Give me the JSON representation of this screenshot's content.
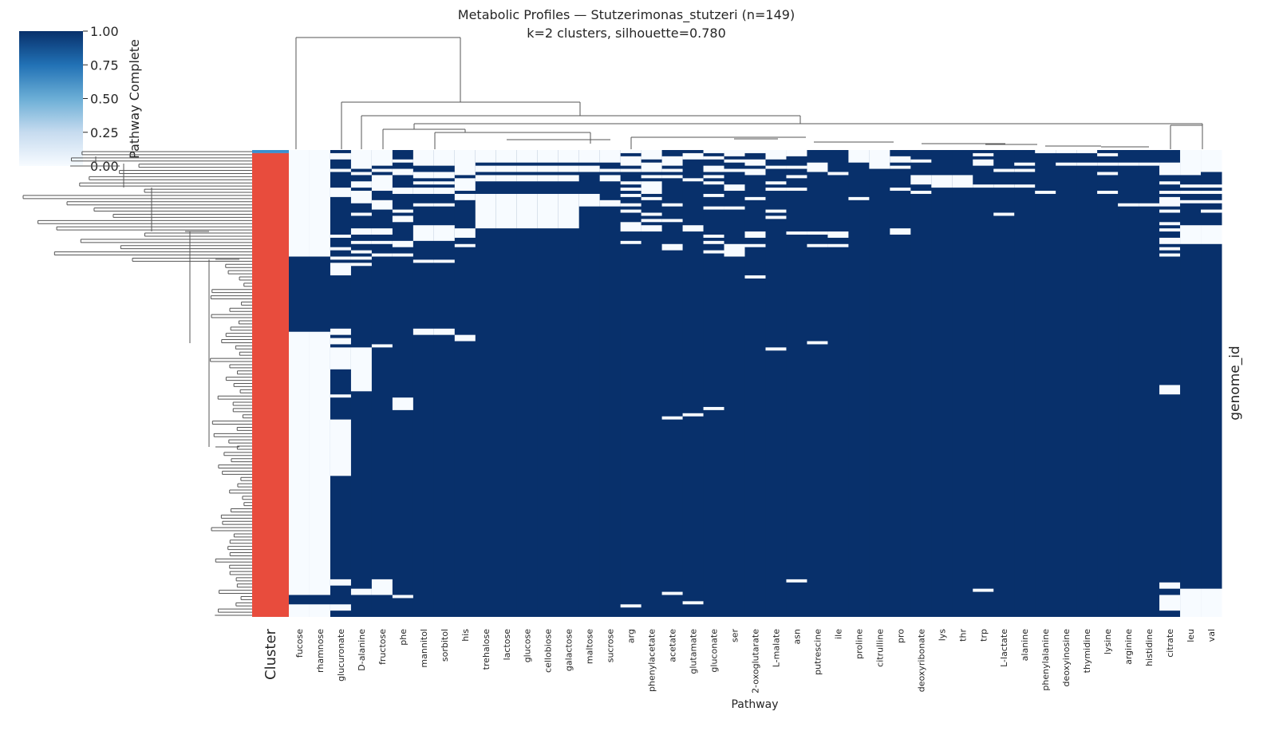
{
  "chart_data": {
    "type": "heatmap",
    "title": "Metabolic Profiles — Stutzerimonas_stutzeri (n=149)",
    "subtitle": "k=2 clusters, silhouette=0.780",
    "xlabel": "Pathway",
    "ylabel": "genome_id",
    "row_count": 149,
    "cluster_label": "Cluster",
    "colors": {
      "high": "#08306b",
      "low": "#f7fbff",
      "cluster_1": "#e84c3d",
      "cluster_2": "#3a8fd0"
    },
    "clusters": [
      {
        "id": 2,
        "rows": [
          0,
          0
        ],
        "color": "#3a8fd0"
      },
      {
        "id": 1,
        "rows": [
          1,
          148
        ],
        "color": "#e84c3d"
      }
    ],
    "colorbar": {
      "label": "Pathway Complete",
      "range": [
        0,
        1
      ],
      "ticks": [
        "0.00",
        "0.25",
        "0.50",
        "0.75",
        "1.00"
      ],
      "tick_values": [
        0,
        0.25,
        0.5,
        0.75,
        1.0
      ],
      "colormap": "Blues"
    },
    "default_value": 1,
    "columns": [
      {
        "name": "fucose",
        "zero_rows": [
          [
            0,
            33
          ],
          [
            58,
            141
          ],
          [
            145,
            148
          ]
        ]
      },
      {
        "name": "rhamnose",
        "zero_rows": [
          [
            0,
            33
          ],
          [
            58,
            141
          ],
          [
            145,
            148
          ]
        ]
      },
      {
        "name": "glucuronate",
        "zero_rows": [
          [
            1,
            2
          ],
          [
            6,
            6
          ],
          [
            12,
            14
          ],
          [
            27,
            27
          ],
          [
            31,
            31
          ],
          [
            34,
            34
          ],
          [
            36,
            39
          ],
          [
            57,
            58
          ],
          [
            60,
            61
          ],
          [
            63,
            69
          ],
          [
            78,
            78
          ],
          [
            86,
            103
          ],
          [
            137,
            138
          ],
          [
            145,
            146
          ]
        ]
      },
      {
        "name": "D-alanine",
        "zero_rows": [
          [
            0,
            5
          ],
          [
            7,
            7
          ],
          [
            10,
            11
          ],
          [
            13,
            16
          ],
          [
            20,
            20
          ],
          [
            25,
            26
          ],
          [
            29,
            29
          ],
          [
            32,
            32
          ],
          [
            34,
            34
          ],
          [
            36,
            36
          ],
          [
            63,
            76
          ],
          [
            140,
            141
          ]
        ]
      },
      {
        "name": "fructose",
        "zero_rows": [
          [
            0,
            4
          ],
          [
            6,
            6
          ],
          [
            8,
            12
          ],
          [
            16,
            18
          ],
          [
            25,
            26
          ],
          [
            29,
            29
          ],
          [
            33,
            33
          ],
          [
            62,
            62
          ],
          [
            137,
            141
          ]
        ]
      },
      {
        "name": "phe",
        "zero_rows": [
          [
            3,
            3
          ],
          [
            6,
            7
          ],
          [
            12,
            13
          ],
          [
            19,
            19
          ],
          [
            21,
            22
          ],
          [
            29,
            30
          ],
          [
            33,
            33
          ],
          [
            79,
            82
          ],
          [
            142,
            142
          ]
        ]
      },
      {
        "name": "mannitol",
        "zero_rows": [
          [
            0,
            4
          ],
          [
            7,
            8
          ],
          [
            10,
            10
          ],
          [
            12,
            13
          ],
          [
            17,
            17
          ],
          [
            24,
            28
          ],
          [
            35,
            35
          ],
          [
            57,
            58
          ]
        ]
      },
      {
        "name": "sorbitol",
        "zero_rows": [
          [
            0,
            4
          ],
          [
            7,
            8
          ],
          [
            10,
            10
          ],
          [
            12,
            13
          ],
          [
            17,
            17
          ],
          [
            24,
            28
          ],
          [
            35,
            35
          ],
          [
            57,
            58
          ]
        ]
      },
      {
        "name": "his",
        "zero_rows": [
          [
            0,
            7
          ],
          [
            9,
            12
          ],
          [
            14,
            15
          ],
          [
            25,
            27
          ],
          [
            30,
            30
          ],
          [
            59,
            60
          ]
        ]
      },
      {
        "name": "trehalose",
        "zero_rows": [
          [
            0,
            3
          ],
          [
            5,
            6
          ],
          [
            8,
            9
          ],
          [
            14,
            24
          ]
        ]
      },
      {
        "name": "lactose",
        "zero_rows": [
          [
            0,
            3
          ],
          [
            5,
            6
          ],
          [
            8,
            9
          ],
          [
            14,
            24
          ]
        ]
      },
      {
        "name": "glucose",
        "zero_rows": [
          [
            0,
            3
          ],
          [
            5,
            6
          ],
          [
            8,
            9
          ],
          [
            14,
            24
          ]
        ]
      },
      {
        "name": "cellobiose",
        "zero_rows": [
          [
            0,
            3
          ],
          [
            5,
            6
          ],
          [
            8,
            9
          ],
          [
            14,
            24
          ]
        ]
      },
      {
        "name": "galactose",
        "zero_rows": [
          [
            0,
            3
          ],
          [
            5,
            6
          ],
          [
            8,
            9
          ],
          [
            14,
            24
          ]
        ]
      },
      {
        "name": "maltose",
        "zero_rows": [
          [
            0,
            3
          ],
          [
            5,
            6
          ],
          [
            14,
            17
          ]
        ]
      },
      {
        "name": "sucrose",
        "zero_rows": [
          [
            0,
            3
          ],
          [
            6,
            6
          ],
          [
            8,
            9
          ],
          [
            16,
            17
          ]
        ]
      },
      {
        "name": "arg",
        "zero_rows": [
          [
            0,
            0
          ],
          [
            2,
            4
          ],
          [
            6,
            6
          ],
          [
            10,
            10
          ],
          [
            12,
            12
          ],
          [
            14,
            14
          ],
          [
            17,
            17
          ],
          [
            19,
            19
          ],
          [
            23,
            25
          ],
          [
            29,
            29
          ],
          [
            145,
            145
          ]
        ]
      },
      {
        "name": "phenylacetate",
        "zero_rows": [
          [
            0,
            2
          ],
          [
            4,
            6
          ],
          [
            8,
            8
          ],
          [
            10,
            13
          ],
          [
            15,
            15
          ],
          [
            20,
            20
          ],
          [
            22,
            22
          ],
          [
            24,
            25
          ]
        ]
      },
      {
        "name": "acetate",
        "zero_rows": [
          [
            2,
            4
          ],
          [
            6,
            6
          ],
          [
            8,
            8
          ],
          [
            17,
            17
          ],
          [
            22,
            22
          ],
          [
            30,
            31
          ],
          [
            85,
            85
          ],
          [
            141,
            141
          ]
        ]
      },
      {
        "name": "glutamate",
        "zero_rows": [
          [
            1,
            2
          ],
          [
            9,
            9
          ],
          [
            24,
            25
          ],
          [
            84,
            84
          ],
          [
            144,
            144
          ]
        ]
      },
      {
        "name": "gluconate",
        "zero_rows": [
          [
            0,
            0
          ],
          [
            2,
            2
          ],
          [
            5,
            6
          ],
          [
            8,
            8
          ],
          [
            10,
            10
          ],
          [
            14,
            14
          ],
          [
            18,
            18
          ],
          [
            27,
            27
          ],
          [
            29,
            29
          ],
          [
            32,
            32
          ],
          [
            82,
            82
          ]
        ]
      },
      {
        "name": "ser",
        "zero_rows": [
          [
            0,
            1
          ],
          [
            3,
            3
          ],
          [
            6,
            6
          ],
          [
            11,
            12
          ],
          [
            18,
            18
          ],
          [
            30,
            33
          ]
        ]
      },
      {
        "name": "2-oxoglutarate",
        "zero_rows": [
          [
            0,
            0
          ],
          [
            3,
            4
          ],
          [
            6,
            7
          ],
          [
            15,
            15
          ],
          [
            26,
            27
          ],
          [
            30,
            30
          ],
          [
            40,
            40
          ]
        ]
      },
      {
        "name": "L-malate",
        "zero_rows": [
          [
            0,
            2
          ],
          [
            5,
            5
          ],
          [
            10,
            10
          ],
          [
            12,
            12
          ],
          [
            19,
            19
          ],
          [
            21,
            21
          ],
          [
            63,
            63
          ]
        ]
      },
      {
        "name": "asn",
        "zero_rows": [
          [
            0,
            1
          ],
          [
            5,
            5
          ],
          [
            8,
            8
          ],
          [
            12,
            12
          ],
          [
            26,
            26
          ],
          [
            137,
            137
          ]
        ]
      },
      {
        "name": "putrescine",
        "zero_rows": [
          [
            4,
            6
          ],
          [
            26,
            26
          ],
          [
            30,
            30
          ],
          [
            61,
            61
          ]
        ]
      },
      {
        "name": "ile",
        "zero_rows": [
          [
            7,
            7
          ],
          [
            26,
            27
          ],
          [
            30,
            30
          ]
        ]
      },
      {
        "name": "proline",
        "zero_rows": [
          [
            0,
            3
          ],
          [
            15,
            15
          ]
        ]
      },
      {
        "name": "citrulline",
        "zero_rows": [
          [
            0,
            5
          ]
        ]
      },
      {
        "name": "pro",
        "zero_rows": [
          [
            2,
            3
          ],
          [
            5,
            5
          ],
          [
            12,
            12
          ],
          [
            25,
            26
          ]
        ]
      },
      {
        "name": "deoxyribonate",
        "zero_rows": [
          [
            3,
            3
          ],
          [
            8,
            10
          ],
          [
            13,
            13
          ]
        ]
      },
      {
        "name": "lys",
        "zero_rows": [
          [
            8,
            11
          ]
        ]
      },
      {
        "name": "thr",
        "zero_rows": [
          [
            8,
            11
          ]
        ]
      },
      {
        "name": "trp",
        "zero_rows": [
          [
            1,
            1
          ],
          [
            3,
            4
          ],
          [
            11,
            11
          ],
          [
            140,
            140
          ]
        ]
      },
      {
        "name": "L-lactate",
        "zero_rows": [
          [
            6,
            6
          ],
          [
            11,
            11
          ],
          [
            20,
            20
          ]
        ]
      },
      {
        "name": "alanine",
        "zero_rows": [
          [
            4,
            4
          ],
          [
            6,
            6
          ],
          [
            11,
            11
          ]
        ]
      },
      {
        "name": "phenylalanine",
        "zero_rows": [
          [
            0,
            0
          ],
          [
            13,
            13
          ]
        ]
      },
      {
        "name": "deoxyinosine",
        "zero_rows": [
          [
            0,
            0
          ],
          [
            4,
            4
          ]
        ]
      },
      {
        "name": "thymidine",
        "zero_rows": [
          [
            0,
            0
          ],
          [
            4,
            4
          ]
        ]
      },
      {
        "name": "lysine",
        "zero_rows": [
          [
            1,
            1
          ],
          [
            4,
            4
          ],
          [
            7,
            7
          ],
          [
            13,
            13
          ]
        ]
      },
      {
        "name": "arginine",
        "zero_rows": [
          [
            4,
            4
          ],
          [
            17,
            17
          ]
        ]
      },
      {
        "name": "histidine",
        "zero_rows": [
          [
            4,
            4
          ],
          [
            17,
            17
          ]
        ]
      },
      {
        "name": "citrate",
        "zero_rows": [
          [
            4,
            7
          ],
          [
            10,
            10
          ],
          [
            13,
            13
          ],
          [
            15,
            17
          ],
          [
            19,
            19
          ],
          [
            23,
            23
          ],
          [
            25,
            25
          ],
          [
            28,
            29
          ],
          [
            31,
            31
          ],
          [
            33,
            33
          ],
          [
            75,
            77
          ],
          [
            138,
            139
          ],
          [
            142,
            146
          ]
        ]
      },
      {
        "name": "leu",
        "zero_rows": [
          [
            0,
            7
          ],
          [
            11,
            11
          ],
          [
            13,
            13
          ],
          [
            16,
            16
          ],
          [
            24,
            29
          ],
          [
            140,
            148
          ]
        ]
      },
      {
        "name": "val",
        "zero_rows": [
          [
            0,
            6
          ],
          [
            11,
            11
          ],
          [
            13,
            13
          ],
          [
            16,
            16
          ],
          [
            19,
            19
          ],
          [
            24,
            29
          ],
          [
            140,
            148
          ]
        ]
      }
    ]
  }
}
